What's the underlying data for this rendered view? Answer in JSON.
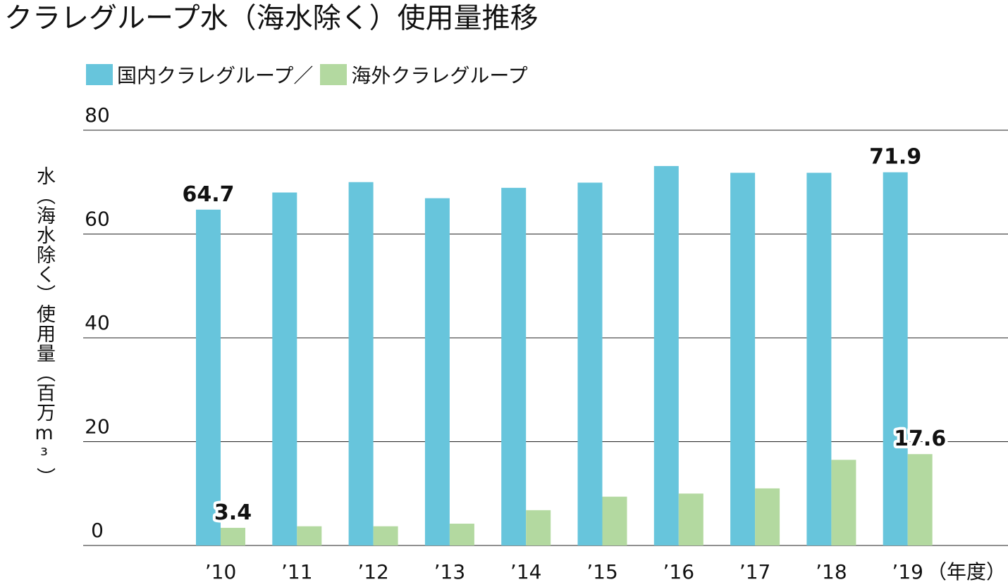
{
  "chart_data": {
    "type": "bar",
    "title": "クラレグループ水（海水除く）使用量推移",
    "ylabel": "水（海水除く）使用量（百万m³）",
    "x_unit_label": "（年度）",
    "categories": [
      "’10",
      "’11",
      "’12",
      "’13",
      "’14",
      "’15",
      "’16",
      "’17",
      "’18",
      "’19"
    ],
    "legend_separator": "／",
    "series": [
      {
        "name": "国内クラレグループ",
        "color": "#67c5dc",
        "values": [
          64.7,
          68.0,
          70.0,
          66.9,
          68.9,
          69.9,
          73.1,
          71.8,
          71.8,
          71.9
        ]
      },
      {
        "name": "海外クラレグループ",
        "color": "#b3d9a0",
        "values": [
          3.4,
          3.7,
          3.7,
          4.2,
          6.8,
          9.4,
          10.0,
          11.0,
          16.5,
          17.6
        ]
      }
    ],
    "data_labels": [
      {
        "series": 0,
        "index": 0,
        "text": "64.7"
      },
      {
        "series": 1,
        "index": 0,
        "text": "3.4"
      },
      {
        "series": 0,
        "index": 9,
        "text": "71.9"
      },
      {
        "series": 1,
        "index": 9,
        "text": "17.6"
      }
    ],
    "ylim": [
      0,
      80
    ],
    "yticks": [
      0,
      20,
      40,
      60,
      80
    ],
    "grid": true,
    "legend_position": "top-left"
  }
}
